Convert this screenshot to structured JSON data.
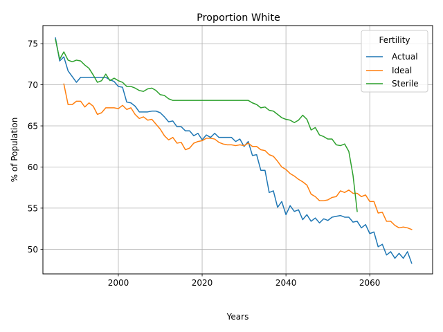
{
  "chart_data": {
    "type": "line",
    "title": "Proportion White",
    "xlabel": "Years",
    "ylabel": "% of Population",
    "xlim": [
      1982,
      2075
    ],
    "ylim": [
      47.0,
      77.2
    ],
    "xticks": [
      2000,
      2020,
      2040,
      2060
    ],
    "yticks": [
      50,
      55,
      60,
      65,
      70,
      75
    ],
    "grid": true,
    "legend": {
      "title": "Fertility",
      "position": "upper right"
    },
    "series": [
      {
        "name": "Actual",
        "color": "#1f77b4",
        "x": [
          1985,
          1986,
          1987,
          1988,
          1989,
          1990,
          1991,
          1992,
          1993,
          1994,
          1995,
          1996,
          1997,
          1998,
          1999,
          2000,
          2001,
          2002,
          2003,
          2004,
          2005,
          2006,
          2007,
          2008,
          2009,
          2010,
          2011,
          2012,
          2013,
          2014,
          2015,
          2016,
          2017,
          2018,
          2019,
          2020,
          2021,
          2022,
          2023,
          2024,
          2025,
          2026,
          2027,
          2028,
          2029,
          2030,
          2031,
          2032,
          2033,
          2034,
          2035,
          2036,
          2037,
          2038,
          2039,
          2040,
          2041,
          2042,
          2043,
          2044,
          2045,
          2046,
          2047,
          2048,
          2049,
          2050,
          2051,
          2052,
          2053,
          2054,
          2055,
          2056,
          2057,
          2058,
          2059,
          2060,
          2061,
          2062,
          2063,
          2064,
          2065,
          2066,
          2067,
          2068,
          2069,
          2070
        ],
        "y": [
          75.7,
          72.9,
          73.4,
          71.7,
          71.0,
          70.3,
          70.9,
          70.9,
          70.9,
          70.9,
          70.9,
          70.9,
          70.9,
          70.6,
          70.4,
          69.8,
          69.7,
          67.9,
          67.8,
          67.4,
          66.7,
          66.7,
          66.7,
          66.8,
          66.8,
          66.6,
          66.1,
          65.5,
          65.6,
          64.9,
          64.9,
          64.4,
          64.4,
          63.8,
          64.1,
          63.3,
          63.9,
          63.6,
          64.1,
          63.6,
          63.6,
          63.6,
          63.6,
          63.1,
          63.4,
          62.5,
          63.1,
          61.4,
          61.5,
          59.6,
          59.6,
          56.9,
          57.1,
          55.1,
          55.8,
          54.2,
          55.3,
          54.6,
          54.8,
          53.6,
          54.2,
          53.4,
          53.8,
          53.2,
          53.7,
          53.5,
          53.9,
          54.0,
          54.1,
          53.9,
          53.9,
          53.3,
          53.4,
          52.6,
          53.0,
          51.9,
          52.1,
          50.3,
          50.6,
          49.3,
          49.7,
          48.9,
          49.5,
          48.9,
          49.7,
          48.3
        ]
      },
      {
        "name": "Ideal",
        "color": "#ff7f0e",
        "x": [
          1987,
          1988,
          1989,
          1990,
          1991,
          1992,
          1993,
          1994,
          1995,
          1996,
          1997,
          1998,
          1999,
          2000,
          2001,
          2002,
          2003,
          2004,
          2005,
          2006,
          2007,
          2008,
          2009,
          2010,
          2011,
          2012,
          2013,
          2014,
          2015,
          2016,
          2017,
          2018,
          2019,
          2020,
          2021,
          2022,
          2023,
          2024,
          2025,
          2026,
          2027,
          2028,
          2029,
          2030,
          2031,
          2032,
          2033,
          2034,
          2035,
          2036,
          2037,
          2038,
          2039,
          2040,
          2041,
          2042,
          2043,
          2044,
          2045,
          2046,
          2047,
          2048,
          2049,
          2050,
          2051,
          2052,
          2053,
          2054,
          2055,
          2056,
          2057,
          2058,
          2059,
          2060,
          2061,
          2062,
          2063,
          2064,
          2065,
          2066,
          2067,
          2068,
          2069,
          2070
        ],
        "y": [
          70.1,
          67.6,
          67.6,
          68.0,
          68.0,
          67.3,
          67.8,
          67.4,
          66.4,
          66.6,
          67.2,
          67.2,
          67.2,
          67.1,
          67.5,
          67.0,
          67.2,
          66.4,
          65.9,
          66.1,
          65.7,
          65.8,
          65.2,
          64.6,
          63.8,
          63.3,
          63.6,
          62.9,
          63.0,
          62.1,
          62.3,
          62.9,
          63.1,
          63.2,
          63.5,
          63.5,
          63.4,
          63.0,
          62.8,
          62.7,
          62.7,
          62.6,
          62.7,
          62.6,
          62.9,
          62.5,
          62.5,
          62.1,
          62.0,
          61.5,
          61.3,
          60.7,
          60.0,
          59.7,
          59.2,
          58.9,
          58.5,
          58.2,
          57.8,
          56.7,
          56.4,
          55.9,
          55.9,
          56.0,
          56.3,
          56.4,
          57.1,
          56.9,
          57.2,
          56.8,
          56.8,
          56.4,
          56.6,
          55.8,
          55.8,
          54.4,
          54.5,
          53.4,
          53.4,
          52.9,
          52.6,
          52.7,
          52.6,
          52.4
        ]
      },
      {
        "name": "Sterile",
        "color": "#2ca02c",
        "x": [
          1985,
          1986,
          1987,
          1988,
          1989,
          1990,
          1991,
          1992,
          1993,
          1994,
          1995,
          1996,
          1997,
          1998,
          1999,
          2000,
          2001,
          2002,
          2003,
          2004,
          2005,
          2006,
          2007,
          2008,
          2009,
          2010,
          2011,
          2012,
          2013,
          2014,
          2015,
          2016,
          2017,
          2018,
          2019,
          2020,
          2021,
          2022,
          2023,
          2024,
          2025,
          2026,
          2027,
          2028,
          2029,
          2030,
          2031,
          2032,
          2033,
          2034,
          2035,
          2036,
          2037,
          2038,
          2039,
          2040,
          2041,
          2042,
          2043,
          2044,
          2045,
          2046,
          2047,
          2048,
          2049,
          2050,
          2051,
          2052,
          2053,
          2054,
          2055,
          2056,
          2057
        ],
        "y": [
          75.5,
          73.1,
          74.0,
          73.0,
          72.8,
          73.0,
          72.9,
          72.4,
          72.0,
          71.2,
          70.3,
          70.5,
          71.3,
          70.5,
          70.8,
          70.5,
          70.3,
          69.8,
          69.8,
          69.6,
          69.3,
          69.2,
          69.5,
          69.6,
          69.3,
          68.8,
          68.7,
          68.3,
          68.1,
          68.1,
          68.1,
          68.1,
          68.1,
          68.1,
          68.1,
          68.1,
          68.1,
          68.1,
          68.1,
          68.1,
          68.1,
          68.1,
          68.1,
          68.1,
          68.1,
          68.1,
          68.1,
          67.8,
          67.6,
          67.2,
          67.3,
          66.9,
          66.8,
          66.4,
          66.0,
          65.8,
          65.7,
          65.4,
          65.7,
          66.3,
          65.8,
          64.5,
          64.8,
          63.9,
          63.7,
          63.4,
          63.4,
          62.7,
          62.6,
          62.8,
          61.9,
          59.0,
          54.6
        ]
      }
    ]
  }
}
